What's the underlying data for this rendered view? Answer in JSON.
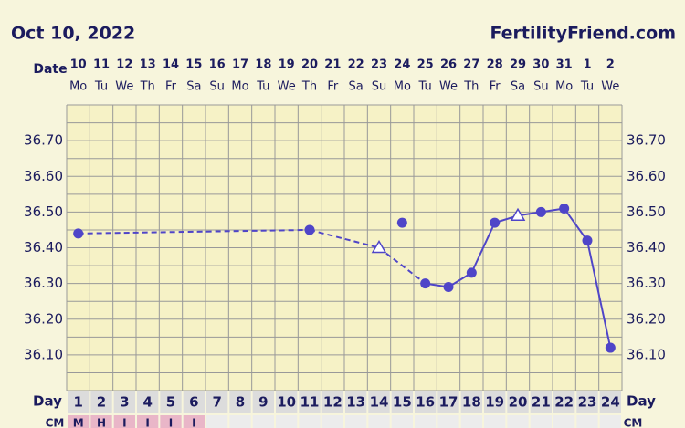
{
  "chart_data": {
    "type": "line",
    "title": "Oct 10, 2022",
    "site": "FertilityFriend.com",
    "date_label": "Date",
    "dates": [
      "10",
      "11",
      "12",
      "13",
      "14",
      "15",
      "16",
      "17",
      "18",
      "19",
      "20",
      "21",
      "22",
      "23",
      "24",
      "25",
      "26",
      "27",
      "28",
      "29",
      "30",
      "31",
      "1",
      "2"
    ],
    "weekdays": [
      "Mo",
      "Tu",
      "We",
      "Th",
      "Fr",
      "Sa",
      "Su",
      "Mo",
      "Tu",
      "We",
      "Th",
      "Fr",
      "Sa",
      "Su",
      "Mo",
      "Tu",
      "We",
      "Th",
      "Fr",
      "Sa",
      "Su",
      "Mo",
      "Tu",
      "We"
    ],
    "day_label": "Day",
    "categories": [
      "1",
      "2",
      "3",
      "4",
      "5",
      "6",
      "7",
      "8",
      "9",
      "10",
      "11",
      "12",
      "13",
      "14",
      "15",
      "16",
      "17",
      "18",
      "19",
      "20",
      "21",
      "22",
      "23",
      "24"
    ],
    "cm_label": "CM",
    "cm": [
      "M",
      "H",
      "I",
      "I",
      "I",
      "I",
      null,
      null,
      null,
      null,
      null,
      null,
      null,
      null,
      null,
      null,
      null,
      null,
      null,
      null,
      null,
      null,
      null,
      null
    ],
    "ylim": [
      36.0,
      36.8
    ],
    "yticks": [
      {
        "value": 36.1,
        "label": "36.10"
      },
      {
        "value": 36.2,
        "label": "36.20"
      },
      {
        "value": 36.3,
        "label": "36.30"
      },
      {
        "value": 36.4,
        "label": "36.40"
      },
      {
        "value": 36.5,
        "label": "36.50"
      },
      {
        "value": 36.6,
        "label": "36.60"
      },
      {
        "value": 36.7,
        "label": "36.70"
      }
    ],
    "minor_yticks": [
      36.05,
      36.15,
      36.25,
      36.35,
      36.45,
      36.55,
      36.65,
      36.75
    ],
    "grid": true,
    "series": [
      {
        "color": "#4f45c8",
        "values": [
          36.44,
          null,
          null,
          null,
          null,
          null,
          null,
          null,
          null,
          null,
          36.45,
          null,
          null,
          36.4,
          36.47,
          36.3,
          36.29,
          36.33,
          36.47,
          36.49,
          36.5,
          36.51,
          36.42,
          36.12
        ],
        "markers": [
          "circle",
          null,
          null,
          null,
          null,
          null,
          null,
          null,
          null,
          null,
          "circle",
          null,
          null,
          "open-triangle",
          "circle",
          "circle",
          "circle",
          "circle",
          "circle",
          "open-triangle",
          "circle",
          "circle",
          "circle",
          "circle"
        ],
        "connect": [
          "start",
          null,
          null,
          null,
          null,
          null,
          null,
          null,
          null,
          null,
          "dashed",
          null,
          null,
          "dashed",
          "none",
          "dashed",
          "solid",
          "solid",
          "solid",
          "solid",
          "solid",
          "solid",
          "solid",
          "solid"
        ]
      }
    ]
  }
}
